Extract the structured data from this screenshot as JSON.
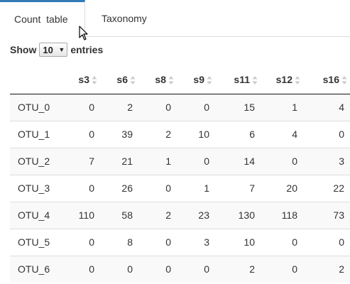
{
  "tabs": [
    {
      "label": "Count  table",
      "active": true
    },
    {
      "label": "Taxonomy",
      "active": false
    }
  ],
  "length_control": {
    "prefix": "Show",
    "selected": "10",
    "suffix": "entries"
  },
  "table": {
    "columns": [
      "",
      "s3",
      "s6",
      "s8",
      "s9",
      "s11",
      "s12",
      "s16"
    ],
    "rows": [
      {
        "label": "OTU_0",
        "values": [
          "0",
          "2",
          "0",
          "0",
          "15",
          "1",
          "4"
        ]
      },
      {
        "label": "OTU_1",
        "values": [
          "0",
          "39",
          "2",
          "10",
          "6",
          "4",
          "0"
        ]
      },
      {
        "label": "OTU_2",
        "values": [
          "7",
          "21",
          "1",
          "0",
          "14",
          "0",
          "3"
        ]
      },
      {
        "label": "OTU_3",
        "values": [
          "0",
          "26",
          "0",
          "1",
          "7",
          "20",
          "22"
        ]
      },
      {
        "label": "OTU_4",
        "values": [
          "110",
          "58",
          "2",
          "23",
          "130",
          "118",
          "73"
        ]
      },
      {
        "label": "OTU_5",
        "values": [
          "0",
          "8",
          "0",
          "3",
          "10",
          "0",
          "0"
        ]
      },
      {
        "label": "OTU_6",
        "values": [
          "0",
          "0",
          "0",
          "0",
          "2",
          "0",
          "2"
        ]
      }
    ]
  },
  "colors": {
    "active_tab_accent": "#337ab7",
    "header_rule": "#111111",
    "row_stripe": "#f9f9f9"
  }
}
